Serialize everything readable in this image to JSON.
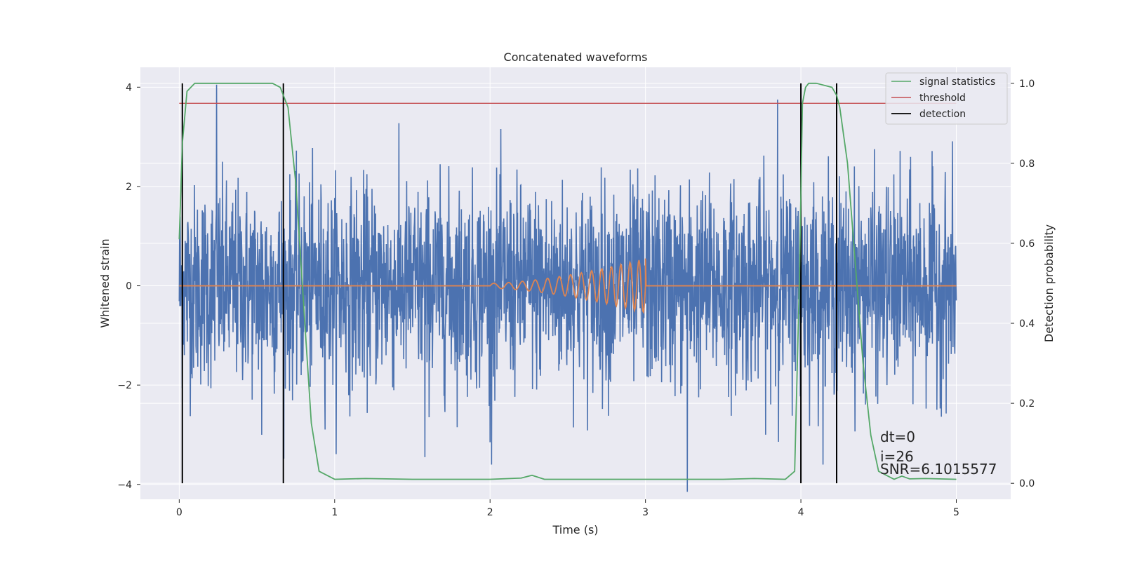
{
  "chart_data": {
    "type": "line",
    "title": "Concatenated waveforms",
    "xlabel": "Time (s)",
    "ylabel": "Whitened strain",
    "y2label": "Detection probability",
    "xlim": [
      -0.25,
      5.35
    ],
    "ylim": [
      -4.3,
      4.4
    ],
    "y2lim": [
      -0.04,
      1.04
    ],
    "xticks": [
      0,
      1,
      2,
      3,
      4,
      5
    ],
    "xtick_labels": [
      "0",
      "1",
      "2",
      "3",
      "4",
      "5"
    ],
    "yticks": [
      -4,
      -2,
      0,
      2,
      4
    ],
    "ytick_labels": [
      "−4",
      "−2",
      "0",
      "2",
      "4"
    ],
    "y2ticks": [
      0.0,
      0.2,
      0.4,
      0.6,
      0.8,
      1.0
    ],
    "y2tick_labels": [
      "0.0",
      "0.2",
      "0.4",
      "0.6",
      "0.8",
      "1.0"
    ],
    "grid": true,
    "legend_position": "top-right",
    "colors": {
      "strain": "#4c72b0",
      "template": "#dd8452",
      "signal_statistics": "#55a868",
      "threshold": "#c44e52",
      "detection": "#000000",
      "background": "#eaeaf2",
      "grid": "#ffffff"
    },
    "series": [
      {
        "name": "signal statistics",
        "axis": "right",
        "x": [
          0.0,
          0.02,
          0.05,
          0.1,
          0.3,
          0.6,
          0.65,
          0.7,
          0.75,
          0.8,
          0.85,
          0.9,
          1.0,
          1.2,
          1.5,
          2.0,
          2.2,
          2.27,
          2.35,
          2.5,
          3.0,
          3.5,
          3.7,
          3.9,
          3.96,
          3.99,
          4.01,
          4.03,
          4.05,
          4.1,
          4.2,
          4.23,
          4.25,
          4.3,
          4.35,
          4.4,
          4.45,
          4.5,
          4.6,
          4.65,
          4.7,
          4.8,
          5.0
        ],
        "y": [
          0.61,
          0.85,
          0.98,
          1.0,
          1.0,
          1.0,
          0.99,
          0.94,
          0.75,
          0.45,
          0.15,
          0.03,
          0.01,
          0.012,
          0.01,
          0.01,
          0.013,
          0.02,
          0.01,
          0.01,
          0.01,
          0.01,
          0.012,
          0.01,
          0.03,
          0.5,
          0.95,
          0.99,
          1.0,
          1.0,
          0.99,
          0.97,
          0.94,
          0.8,
          0.55,
          0.3,
          0.12,
          0.03,
          0.01,
          0.018,
          0.011,
          0.012,
          0.01
        ]
      },
      {
        "name": "threshold",
        "axis": "right",
        "x": [
          0,
          5
        ],
        "y": [
          0.95,
          0.95
        ]
      }
    ],
    "detections": [
      0.02,
      0.67,
      4.0,
      4.23
    ],
    "strain": {
      "x_range": [
        0,
        5
      ],
      "typical_amplitude": 1.0,
      "peaks": [
        {
          "x": 0.24,
          "y": 4.05
        },
        {
          "x": 3.27,
          "y": -4.15
        },
        {
          "x": 1.58,
          "y": -3.45
        },
        {
          "x": 3.85,
          "y": 3.75
        },
        {
          "x": 2.0,
          "y": -3.15
        },
        {
          "x": 0.53,
          "y": -3.0
        }
      ]
    },
    "template": {
      "x_range": [
        2.0,
        3.0
      ],
      "start_amplitude": 0.05,
      "end_amplitude": 0.55,
      "start_frequency": 10,
      "end_frequency": 18
    },
    "annotations": [
      "dt=0",
      "i=26",
      "SNR=6.1015577"
    ]
  }
}
